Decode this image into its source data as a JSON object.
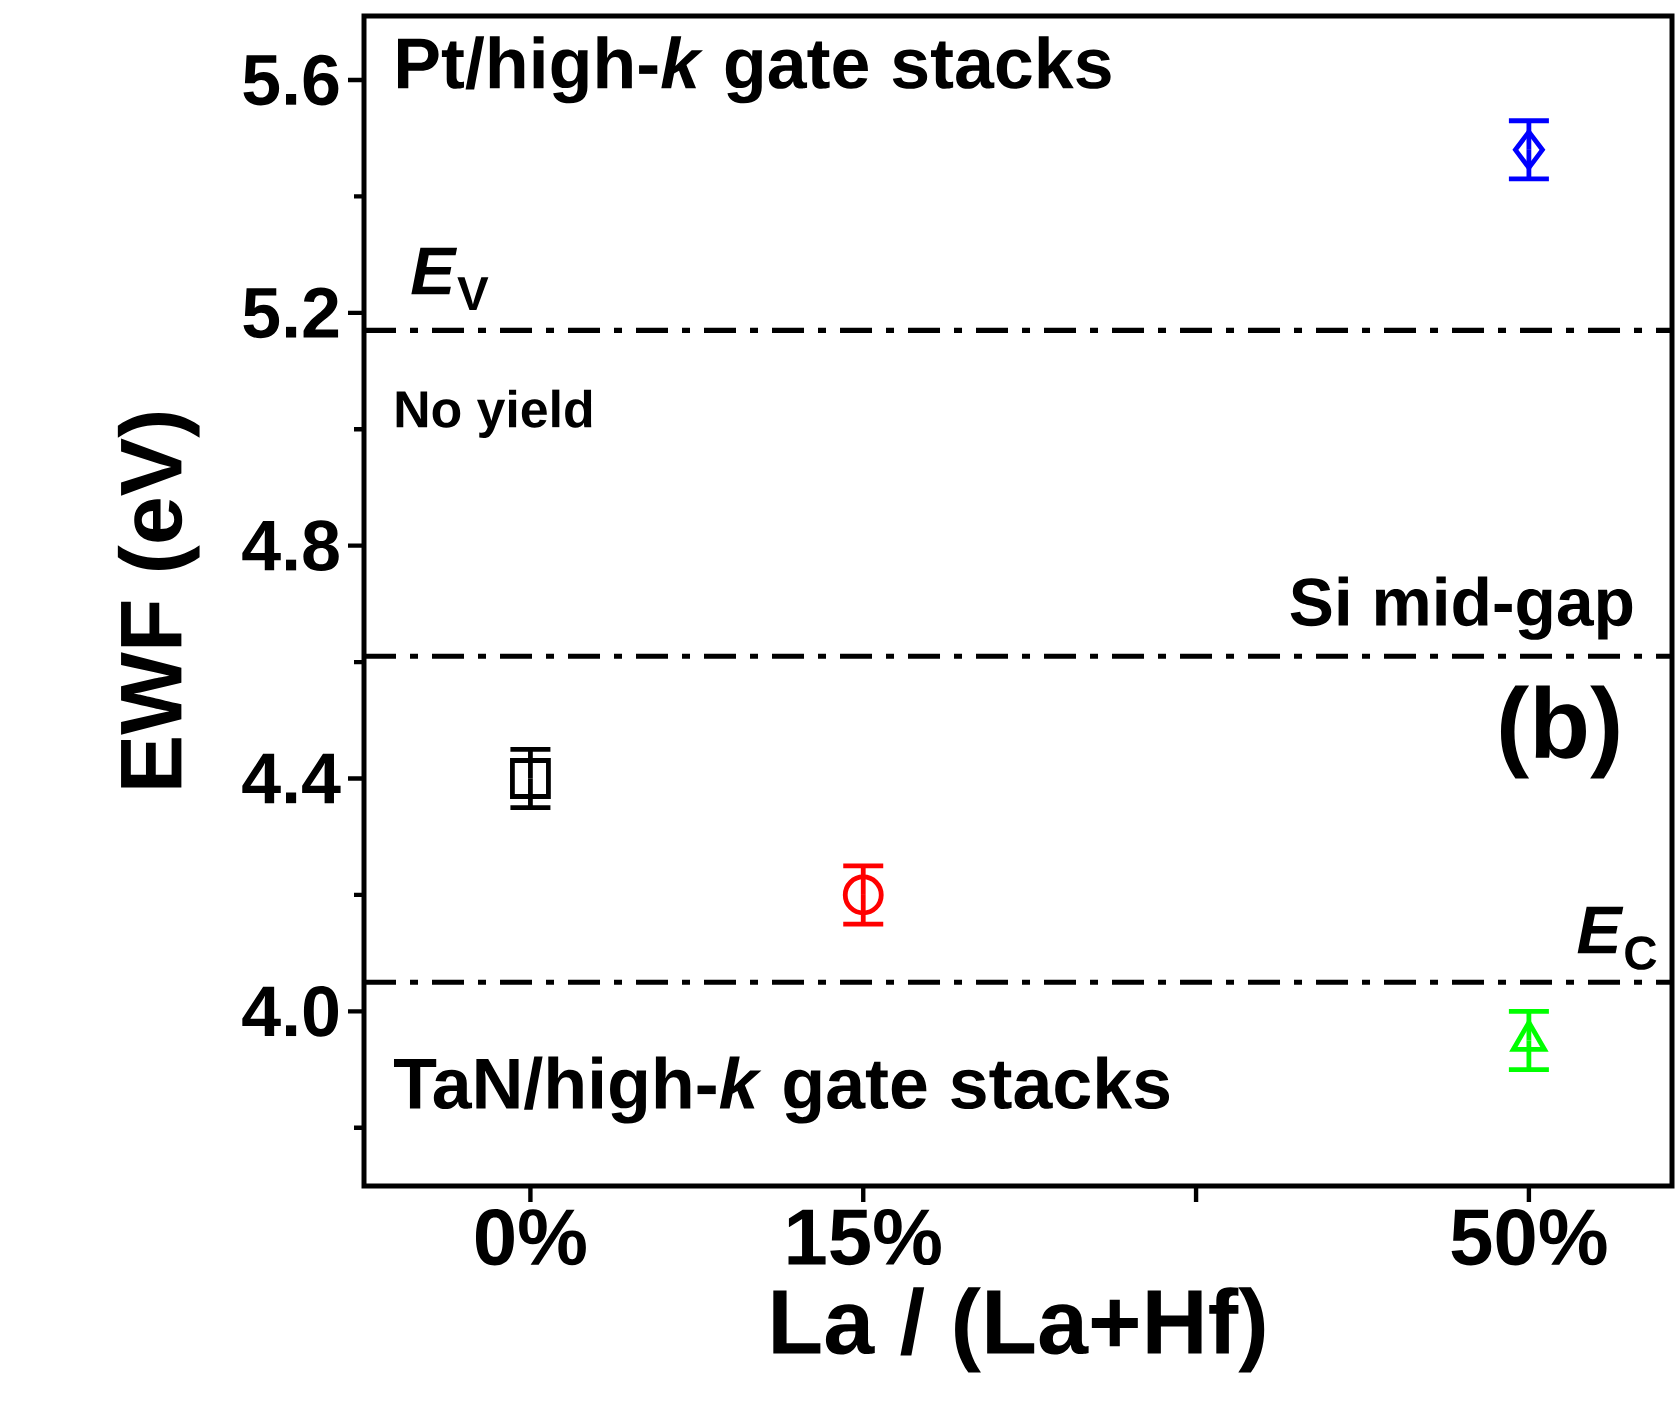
{
  "chart_data": {
    "type": "scatter",
    "xlabel": "La / (La+Hf)",
    "ylabel": "EWF (eV)",
    "categories": [
      "0%",
      "15%",
      null,
      "50%"
    ],
    "ylim": [
      3.7,
      5.71
    ],
    "yticks": [
      {
        "value": 3.8,
        "label": null
      },
      {
        "value": 4.0,
        "label": "4.0"
      },
      {
        "value": 4.2,
        "label": null
      },
      {
        "value": 4.4,
        "label": "4.4"
      },
      {
        "value": 4.6,
        "label": null
      },
      {
        "value": 4.8,
        "label": "4.8"
      },
      {
        "value": 5.0,
        "label": null
      },
      {
        "value": 5.2,
        "label": "5.2"
      },
      {
        "value": 5.4,
        "label": null
      },
      {
        "value": 5.6,
        "label": "5.6"
      }
    ],
    "series": [
      {
        "color": "#000000",
        "marker": "square",
        "values": [
          4.4,
          null,
          null,
          null
        ],
        "errors": [
          0.05,
          null,
          null,
          null
        ]
      },
      {
        "color": "#ff0000",
        "marker": "circle",
        "values": [
          null,
          4.2,
          null,
          null
        ],
        "errors": [
          null,
          0.05,
          null,
          null
        ]
      },
      {
        "color": "#0000ff",
        "marker": "diamond",
        "values": [
          null,
          null,
          null,
          5.48
        ],
        "errors": [
          null,
          null,
          null,
          0.05
        ]
      },
      {
        "color": "#00ff00",
        "marker": "triangle",
        "values": [
          null,
          null,
          null,
          3.95
        ],
        "errors": [
          null,
          null,
          null,
          0.05
        ]
      }
    ],
    "ref_lines": [
      {
        "axis": "y",
        "value": 5.17,
        "label": "*E*$_{V}$",
        "line_style": "dashdot",
        "color": "#000000"
      },
      {
        "axis": "y",
        "value": 4.61,
        "label": "Si mid-gap",
        "line_style": "dashdot",
        "color": "#000000"
      },
      {
        "axis": "y",
        "value": 4.05,
        "label": "*E*$_{C}$",
        "line_style": "dashdot",
        "color": "#000000"
      }
    ],
    "annotations": [
      "Pt/high-*k* gate stacks",
      "No yield",
      "(b)",
      "TaN/high-*k* gate stacks"
    ],
    "grid": false
  }
}
